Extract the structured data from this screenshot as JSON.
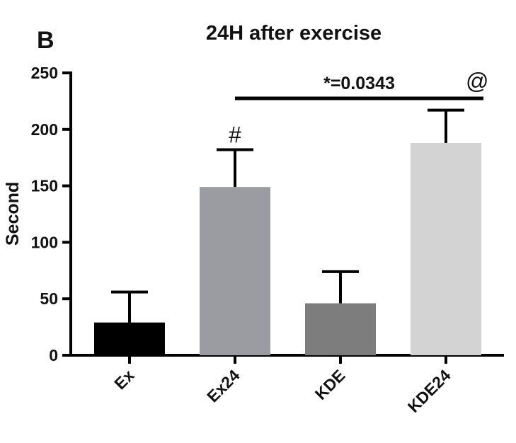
{
  "chart_data": {
    "type": "bar",
    "panel_label": "B",
    "title": "24H after exercise",
    "xlabel": "",
    "ylabel": "Second",
    "ylim": [
      0,
      250
    ],
    "yticks": [
      0,
      50,
      100,
      150,
      200,
      250
    ],
    "categories": [
      "Ex",
      "Ex24",
      "KDE",
      "KDE24"
    ],
    "values": [
      29,
      149,
      46,
      188
    ],
    "error_upper": [
      56,
      182,
      74,
      217
    ],
    "colors": [
      "#000000",
      "#9b9ca1",
      "#7d7d7d",
      "#d3d3d3"
    ],
    "markers": [
      "",
      "#",
      "",
      "@"
    ],
    "significance": {
      "from": "Ex24",
      "to": "KDE24",
      "label": "*=0.0343"
    },
    "grid": false
  }
}
